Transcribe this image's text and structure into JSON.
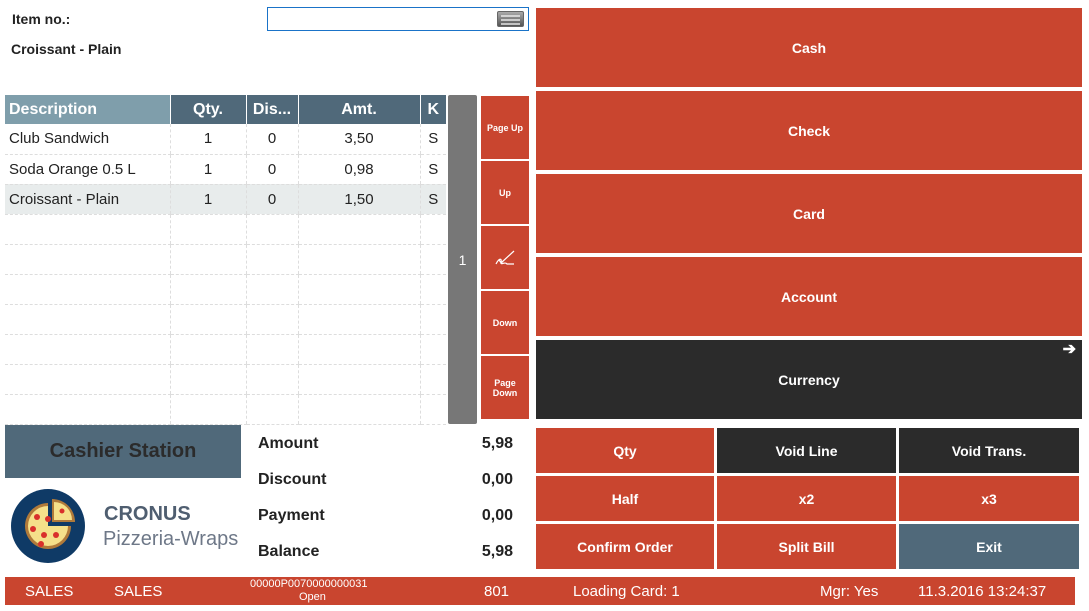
{
  "item_no_label": "Item no.:",
  "item_input": {
    "value": "",
    "placeholder": ""
  },
  "current_item": "Croissant - Plain",
  "table": {
    "headers": [
      "Description",
      "Qty.",
      "Dis...",
      "Amt.",
      "K"
    ],
    "rows": [
      [
        "Club Sandwich",
        "1",
        "0",
        "3,50",
        "S"
      ],
      [
        "Soda Orange 0.5 L",
        "1",
        "0",
        "0,98",
        "S"
      ],
      [
        "Croissant - Plain",
        "1",
        "0",
        "1,50",
        "S"
      ]
    ],
    "selected_row": 2
  },
  "page_indicator": "1",
  "nav": {
    "page_up": "Page Up",
    "up": "Up",
    "down": "Down",
    "page_down": "Page Down"
  },
  "payment": {
    "cash": "Cash",
    "check": "Check",
    "card": "Card",
    "account": "Account",
    "currency": "Currency"
  },
  "functions": {
    "qty": "Qty",
    "void_line": "Void Line",
    "void_trans": "Void Trans.",
    "half": "Half",
    "x2": "x2",
    "x3": "x3",
    "confirm_order": "Confirm Order",
    "split_bill": "Split Bill",
    "exit": "Exit"
  },
  "cashier_station": "Cashier Station",
  "logo": {
    "brand": "CRONUS",
    "sub": "Pizzeria-Wraps"
  },
  "totals": {
    "amount_label": "Amount",
    "amount": "5,98",
    "discount_label": "Discount",
    "discount": "0,00",
    "payment_label": "Payment",
    "payment": "0,00",
    "balance_label": "Balance",
    "balance": "5,98"
  },
  "status": {
    "s1": "SALES",
    "s2": "SALES",
    "receipt": "00000P0070000000031",
    "receipt_state": "Open",
    "terminal": "801",
    "loading_card": "Loading Card: 1",
    "mgr": "Mgr: Yes",
    "datetime": "11.3.2016 13:24:37"
  },
  "colors": {
    "accent": "#c9452f",
    "dark": "#2b2b2b",
    "slate": "#50697a"
  }
}
